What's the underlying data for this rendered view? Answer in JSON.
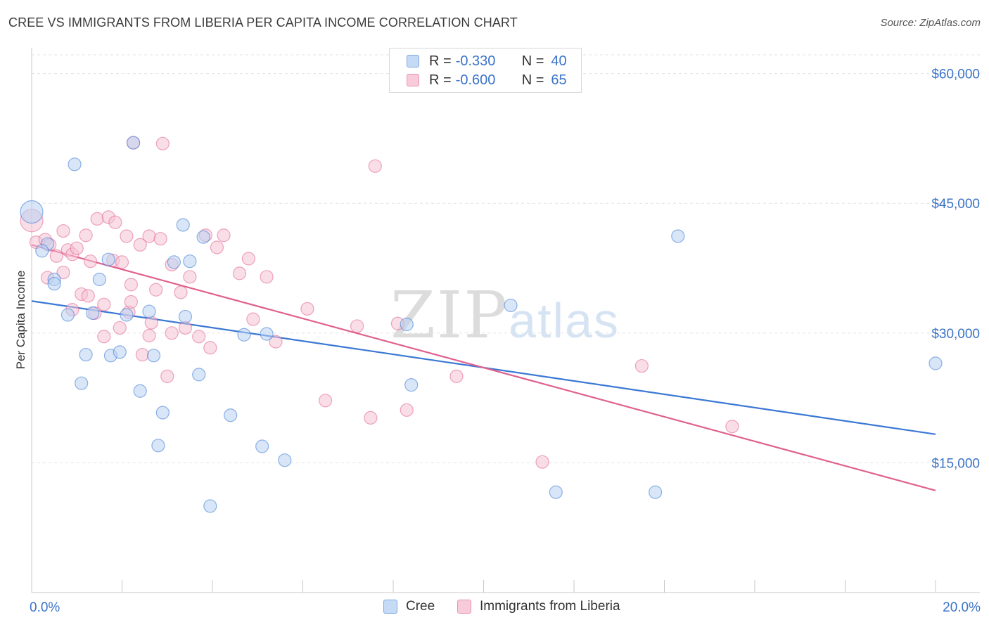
{
  "header": {
    "title": "CREE VS IMMIGRANTS FROM LIBERIA PER CAPITA INCOME CORRELATION CHART",
    "source": "Source: ZipAtlas.com"
  },
  "watermark": {
    "part1": "ZIP",
    "part2": "atlas"
  },
  "legend_top": {
    "rows": [
      {
        "r_label": "R =",
        "r_value": "-0.330",
        "n_label": "N =",
        "n_value": "40",
        "color": "#a8c8f0"
      },
      {
        "r_label": "R =",
        "r_value": "-0.600",
        "n_label": "N =",
        "n_value": "65",
        "color": "#f4b8cc"
      }
    ]
  },
  "chart_data": {
    "type": "scatter",
    "title": "CREE VS IMMIGRANTS FROM LIBERIA PER CAPITA INCOME CORRELATION CHART",
    "xlabel": "",
    "ylabel": "Per Capita Income",
    "xlim": [
      0,
      20
    ],
    "ylim": [
      0,
      62000
    ],
    "x_ticks": [
      0,
      2,
      4,
      6,
      8,
      10,
      12,
      14,
      16,
      18,
      20
    ],
    "x_tick_labels": {
      "left": "0.0%",
      "right": "20.0%"
    },
    "y_ticks": [
      15000,
      30000,
      45000,
      60000
    ],
    "y_tick_labels": [
      "$15,000",
      "$30,000",
      "$45,000",
      "$60,000"
    ],
    "grid": true,
    "legend_position": "bottom",
    "series": [
      {
        "name": "Cree",
        "color": "#3a78d4",
        "fill": "#b8d1f2",
        "trendline": {
          "x": [
            0,
            20
          ],
          "y": [
            33700,
            18300
          ]
        },
        "points": [
          [
            0.0,
            44000
          ],
          [
            0.35,
            40300
          ],
          [
            0.23,
            39500
          ],
          [
            0.5,
            36200
          ],
          [
            0.5,
            35700
          ],
          [
            0.95,
            49500
          ],
          [
            0.8,
            32100
          ],
          [
            1.2,
            27500
          ],
          [
            1.1,
            24200
          ],
          [
            1.35,
            32300
          ],
          [
            1.5,
            36200
          ],
          [
            1.7,
            38500
          ],
          [
            1.75,
            27400
          ],
          [
            1.95,
            27800
          ],
          [
            2.1,
            32100
          ],
          [
            2.25,
            52000
          ],
          [
            2.4,
            23300
          ],
          [
            2.6,
            32500
          ],
          [
            2.7,
            27400
          ],
          [
            2.8,
            17000
          ],
          [
            2.9,
            20800
          ],
          [
            3.15,
            38200
          ],
          [
            3.35,
            42500
          ],
          [
            3.4,
            31900
          ],
          [
            3.5,
            38300
          ],
          [
            3.7,
            25200
          ],
          [
            3.8,
            41100
          ],
          [
            3.95,
            10000
          ],
          [
            4.7,
            29800
          ],
          [
            4.4,
            20500
          ],
          [
            5.1,
            16900
          ],
          [
            5.2,
            29900
          ],
          [
            5.6,
            15300
          ],
          [
            8.3,
            31000
          ],
          [
            8.4,
            24000
          ],
          [
            10.6,
            33200
          ],
          [
            11.6,
            11600
          ],
          [
            13.8,
            11600
          ],
          [
            14.3,
            41200
          ],
          [
            20.0,
            26500
          ]
        ]
      },
      {
        "name": "Immigrants from Liberia",
        "color": "#e0608e",
        "fill": "#f6c2d3",
        "trendline": {
          "x": [
            0,
            20
          ],
          "y": [
            40200,
            11800
          ]
        },
        "points": [
          [
            0.0,
            43000
          ],
          [
            0.1,
            40500
          ],
          [
            0.3,
            40800
          ],
          [
            0.4,
            40200
          ],
          [
            0.35,
            36400
          ],
          [
            0.55,
            38900
          ],
          [
            0.7,
            37000
          ],
          [
            0.7,
            41800
          ],
          [
            0.8,
            39600
          ],
          [
            0.9,
            32700
          ],
          [
            0.9,
            39100
          ],
          [
            1.0,
            39800
          ],
          [
            1.1,
            34500
          ],
          [
            1.2,
            41300
          ],
          [
            1.25,
            34300
          ],
          [
            1.3,
            38300
          ],
          [
            1.4,
            32300
          ],
          [
            1.45,
            43200
          ],
          [
            1.6,
            33300
          ],
          [
            1.7,
            43400
          ],
          [
            1.8,
            38400
          ],
          [
            1.85,
            42800
          ],
          [
            1.95,
            30600
          ],
          [
            2.0,
            38200
          ],
          [
            2.1,
            41200
          ],
          [
            2.15,
            32400
          ],
          [
            2.2,
            33600
          ],
          [
            2.25,
            52000
          ],
          [
            2.4,
            40200
          ],
          [
            2.45,
            27500
          ],
          [
            2.6,
            41200
          ],
          [
            2.6,
            29700
          ],
          [
            2.65,
            31200
          ],
          [
            2.75,
            35000
          ],
          [
            2.85,
            40900
          ],
          [
            2.9,
            51900
          ],
          [
            3.0,
            25000
          ],
          [
            3.1,
            37900
          ],
          [
            3.1,
            30000
          ],
          [
            3.3,
            34700
          ],
          [
            3.4,
            30600
          ],
          [
            3.5,
            36500
          ],
          [
            3.7,
            29600
          ],
          [
            3.85,
            41300
          ],
          [
            3.95,
            28300
          ],
          [
            4.1,
            39900
          ],
          [
            4.25,
            41300
          ],
          [
            4.6,
            36900
          ],
          [
            4.8,
            38600
          ],
          [
            4.9,
            31600
          ],
          [
            5.2,
            36500
          ],
          [
            5.4,
            29000
          ],
          [
            6.1,
            32800
          ],
          [
            6.5,
            22200
          ],
          [
            7.2,
            30800
          ],
          [
            7.5,
            20200
          ],
          [
            7.6,
            49300
          ],
          [
            8.1,
            31100
          ],
          [
            8.3,
            21100
          ],
          [
            9.4,
            25000
          ],
          [
            11.3,
            15100
          ],
          [
            13.5,
            26200
          ],
          [
            15.5,
            19200
          ],
          [
            2.2,
            35600
          ],
          [
            1.6,
            29600
          ]
        ]
      }
    ]
  }
}
